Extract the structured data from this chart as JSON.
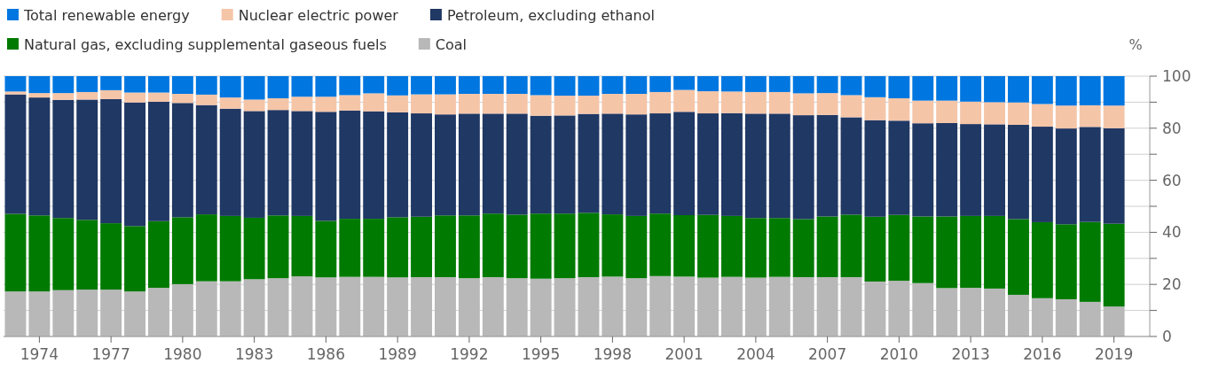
{
  "chart_data": {
    "type": "bar",
    "stacked": true,
    "ylabel": "%",
    "x": [
      1973,
      1974,
      1975,
      1976,
      1977,
      1978,
      1979,
      1980,
      1981,
      1982,
      1983,
      1984,
      1985,
      1986,
      1987,
      1988,
      1989,
      1990,
      1991,
      1992,
      1993,
      1994,
      1995,
      1996,
      1997,
      1998,
      1999,
      2000,
      2001,
      2002,
      2003,
      2004,
      2005,
      2006,
      2007,
      2008,
      2009,
      2010,
      2011,
      2012,
      2013,
      2014,
      2015,
      2016,
      2017,
      2018,
      2019
    ],
    "xlim": [
      1972.5,
      2020.5
    ],
    "xticks": [
      1974,
      1977,
      1980,
      1983,
      1986,
      1989,
      1992,
      1995,
      1998,
      2001,
      2004,
      2007,
      2010,
      2013,
      2016,
      2019
    ],
    "ylim": [
      0,
      100
    ],
    "yticks": [
      0,
      {
        "value": 10,
        "label": null
      },
      20,
      {
        "value": 30,
        "label": null
      },
      40,
      {
        "value": 50,
        "label": null
      },
      60,
      {
        "value": 70,
        "label": null
      },
      80,
      {
        "value": 90,
        "label": null
      },
      100
    ],
    "grid": "y",
    "legend": "top left",
    "series": [
      {
        "name": "Coal",
        "color": "#b8b8b8",
        "values": [
          17.3,
          17.3,
          17.8,
          18.0,
          18.0,
          17.3,
          18.7,
          20.1,
          21.2,
          21.2,
          22.0,
          22.4,
          23.1,
          22.7,
          22.9,
          22.9,
          22.7,
          22.8,
          22.8,
          22.4,
          22.8,
          22.4,
          22.2,
          22.4,
          22.8,
          23.0,
          22.4,
          23.2,
          23.0,
          22.6,
          22.9,
          22.6,
          22.9,
          22.8,
          22.8,
          22.8,
          21.1,
          21.4,
          20.5,
          18.6,
          18.7,
          18.4,
          16.0,
          14.7,
          14.3,
          13.3,
          11.5
        ]
      },
      {
        "name": "Natural gas, excluding supplemental gaseous fuels",
        "color": "#007a00",
        "values": [
          29.8,
          29.2,
          27.7,
          26.8,
          25.5,
          25.1,
          25.6,
          25.7,
          25.7,
          25.1,
          23.6,
          24.1,
          23.2,
          21.7,
          22.3,
          22.3,
          23.1,
          23.2,
          23.7,
          24.1,
          24.4,
          24.4,
          25.0,
          24.8,
          24.7,
          23.9,
          23.9,
          24.0,
          23.6,
          24.1,
          23.4,
          22.9,
          22.6,
          22.3,
          23.3,
          24.0,
          24.9,
          25.3,
          25.6,
          27.5,
          27.6,
          27.9,
          29.1,
          29.2,
          28.8,
          30.7,
          31.8
        ]
      },
      {
        "name": "Petroleum, excluding ethanol",
        "color": "#203864",
        "values": [
          45.9,
          45.3,
          45.4,
          46.2,
          47.7,
          47.5,
          45.9,
          43.9,
          42.0,
          41.2,
          41.0,
          40.5,
          40.3,
          41.9,
          41.6,
          41.3,
          40.3,
          39.7,
          38.8,
          39.1,
          38.4,
          38.8,
          37.6,
          37.7,
          38.0,
          38.7,
          39.0,
          38.5,
          39.7,
          39.0,
          39.5,
          40.1,
          40.1,
          39.9,
          39.0,
          37.4,
          37.1,
          36.2,
          35.8,
          35.9,
          35.3,
          35.2,
          36.2,
          36.7,
          36.8,
          36.5,
          36.7
        ]
      },
      {
        "name": "Nuclear electric power",
        "color": "#f5c5a8",
        "values": [
          1.1,
          1.7,
          2.6,
          2.9,
          3.4,
          3.8,
          3.5,
          3.5,
          4.0,
          4.3,
          4.4,
          4.5,
          5.5,
          5.8,
          5.9,
          6.9,
          6.5,
          7.3,
          7.7,
          7.6,
          7.6,
          7.6,
          7.9,
          7.6,
          7.0,
          7.6,
          7.9,
          8.2,
          8.4,
          8.5,
          8.3,
          8.3,
          8.3,
          8.4,
          8.4,
          8.5,
          8.8,
          8.6,
          8.7,
          8.6,
          8.6,
          8.5,
          8.6,
          8.7,
          8.8,
          8.3,
          8.7
        ]
      },
      {
        "name": "Total renewable energy",
        "color": "#0077e0",
        "values": [
          5.9,
          6.5,
          6.5,
          6.1,
          5.4,
          6.3,
          6.3,
          6.8,
          7.1,
          8.2,
          9.0,
          8.5,
          7.9,
          7.9,
          7.3,
          6.6,
          7.4,
          7.0,
          7.0,
          6.8,
          6.8,
          6.8,
          7.3,
          7.5,
          7.5,
          6.8,
          6.8,
          6.1,
          5.3,
          5.8,
          5.9,
          6.1,
          6.1,
          6.6,
          6.5,
          7.3,
          8.1,
          8.5,
          9.4,
          9.4,
          9.8,
          10.0,
          10.1,
          10.7,
          11.3,
          11.2,
          11.3
        ]
      }
    ]
  }
}
